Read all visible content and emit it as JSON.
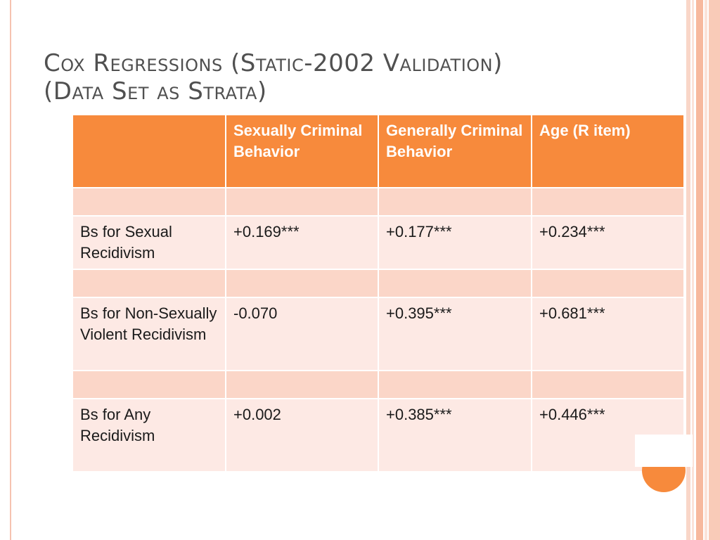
{
  "title": {
    "line1": "Cox Regressions (Static-2002 Validation)",
    "line2": "(Data Set as Strata)"
  },
  "table": {
    "headers": [
      "",
      "Sexually Criminal Behavior",
      "Generally Criminal Behavior",
      "Age (R item)"
    ],
    "rows": [
      {
        "label": "Bs for Sexual Recidivism",
        "values": [
          "+0.169***",
          "+0.177***",
          "+0.234***"
        ]
      },
      {
        "label": "Bs for Non-Sexually Violent Recidivism",
        "values": [
          "-0.070",
          "+0.395***",
          "+0.681***"
        ]
      },
      {
        "label": "Bs for Any Recidivism",
        "values": [
          "+0.002",
          "+0.385***",
          "+0.446***"
        ]
      }
    ]
  },
  "colors": {
    "accent": "#f78a3c",
    "header_text": "#ffffff",
    "row_light": "#fde9e4",
    "row_spacer": "#fbd6c8"
  }
}
